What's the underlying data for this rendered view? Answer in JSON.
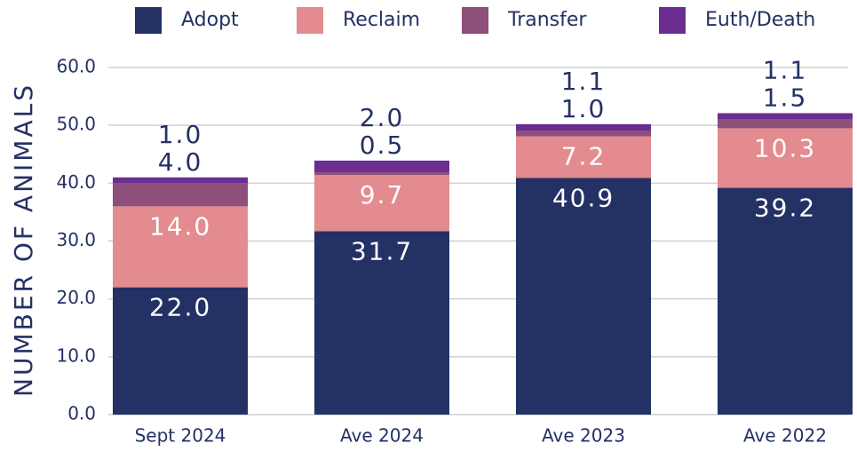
{
  "chart_data": {
    "type": "stacked_bar",
    "y_axis_label": "NUMBER OF ANIMALS",
    "categories": [
      "Sept 2024",
      "Ave 2024",
      "Ave 2023",
      "Ave 2022"
    ],
    "series": [
      {
        "name": "Adopt",
        "color": "#243165",
        "values": [
          22.0,
          31.7,
          40.9,
          39.2
        ],
        "value_labels": [
          "22.0",
          "31.7",
          "40.9",
          "39.2"
        ]
      },
      {
        "name": "Reclaim",
        "color": "#e38b8f",
        "values": [
          14.0,
          9.7,
          7.2,
          10.3
        ],
        "value_labels": [
          "14.0",
          "9.7",
          "7.2",
          "10.3"
        ]
      },
      {
        "name": "Transfer",
        "color": "#8e4f7a",
        "values": [
          4.0,
          0.5,
          1.0,
          1.5
        ],
        "value_labels": [
          "4.0",
          "0.5",
          "1.0",
          "1.5"
        ]
      },
      {
        "name": "Euth/Death",
        "color": "#6b2d90",
        "values": [
          1.0,
          2.0,
          1.1,
          1.1
        ],
        "value_labels": [
          "1.0",
          "2.0",
          "1.1",
          "1.1"
        ]
      }
    ],
    "ylim": [
      0,
      60
    ],
    "yticks": [
      {
        "value": 0,
        "label": "0.0"
      },
      {
        "value": 10,
        "label": "10.0"
      },
      {
        "value": 20,
        "label": "20.0"
      },
      {
        "value": 30,
        "label": "30.0"
      },
      {
        "value": 40,
        "label": "40.0"
      },
      {
        "value": 50,
        "label": "50.0"
      },
      {
        "value": 60,
        "label": "60.0"
      }
    ],
    "grid": true,
    "legend": "top"
  }
}
